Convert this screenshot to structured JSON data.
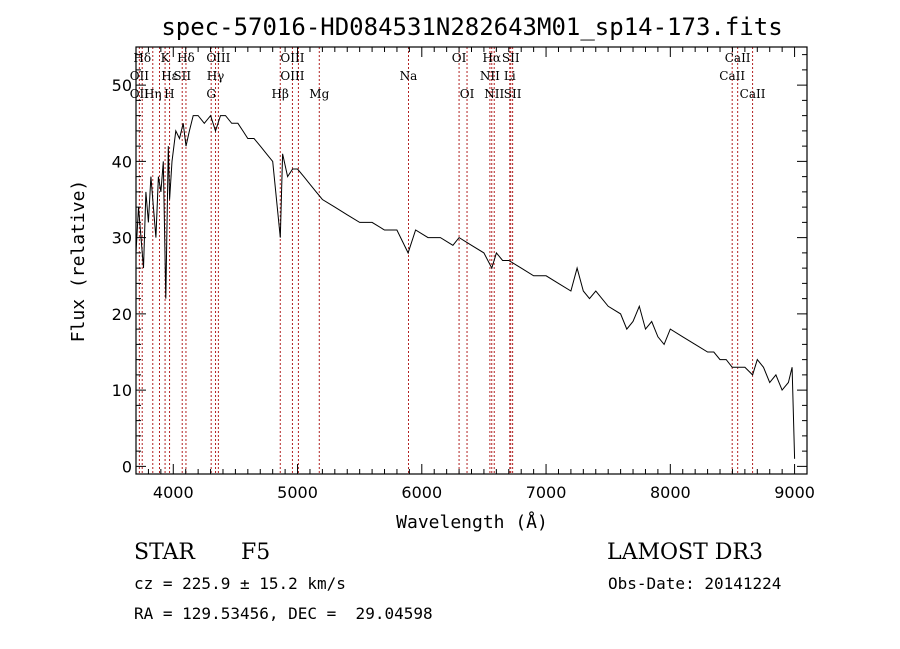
{
  "chart_data": {
    "type": "line",
    "title": "spec-57016-HD084531N282643M01_sp14-173.fits",
    "xlabel": "Wavelength (Å)",
    "ylabel": "Flux (relative)",
    "xlim": [
      3700,
      9100
    ],
    "ylim": [
      -1,
      55
    ],
    "xticks": [
      4000,
      5000,
      6000,
      7000,
      8000,
      9000
    ],
    "yticks": [
      0,
      10,
      20,
      30,
      40,
      50
    ],
    "grid": false,
    "series": [
      {
        "name": "flux",
        "x": [
          3700,
          3720,
          3740,
          3760,
          3780,
          3800,
          3820,
          3840,
          3860,
          3880,
          3900,
          3920,
          3940,
          3960,
          3970,
          3990,
          4020,
          4050,
          4080,
          4102,
          4130,
          4160,
          4200,
          4250,
          4300,
          4340,
          4380,
          4420,
          4470,
          4520,
          4560,
          4600,
          4650,
          4700,
          4750,
          4800,
          4861,
          4880,
          4920,
          4960,
          5000,
          5050,
          5100,
          5150,
          5200,
          5300,
          5400,
          5500,
          5600,
          5700,
          5800,
          5890,
          5950,
          6050,
          6150,
          6250,
          6300,
          6400,
          6500,
          6563,
          6600,
          6650,
          6700,
          6800,
          6900,
          7000,
          7100,
          7200,
          7250,
          7300,
          7350,
          7400,
          7500,
          7600,
          7650,
          7700,
          7750,
          7800,
          7850,
          7900,
          7950,
          8000,
          8100,
          8200,
          8300,
          8350,
          8400,
          8450,
          8498,
          8542,
          8600,
          8662,
          8700,
          8750,
          8800,
          8850,
          8900,
          8950,
          8980,
          9000
        ],
        "y": [
          28,
          34,
          30,
          26,
          36,
          32,
          38,
          34,
          30,
          38,
          36,
          40,
          22,
          42,
          35,
          40,
          44,
          43,
          45,
          42,
          44,
          46,
          46,
          45,
          46,
          44,
          46,
          46,
          45,
          45,
          44,
          43,
          43,
          42,
          41,
          40,
          30,
          41,
          38,
          39,
          39,
          38,
          37,
          36,
          35,
          34,
          33,
          32,
          32,
          31,
          31,
          28,
          31,
          30,
          30,
          29,
          30,
          29,
          28,
          26,
          28,
          27,
          27,
          26,
          25,
          25,
          24,
          23,
          26,
          23,
          22,
          23,
          21,
          20,
          18,
          19,
          21,
          18,
          19,
          17,
          16,
          18,
          17,
          16,
          15,
          15,
          14,
          14,
          13,
          13,
          13,
          12,
          14,
          13,
          11,
          12,
          10,
          11,
          13,
          1
        ]
      }
    ],
    "lines": [
      {
        "label": "Hδ",
        "wave": 3750,
        "row": 1
      },
      {
        "label": "OII",
        "wave": 3727,
        "row": 2
      },
      {
        "label": "OII",
        "wave": 3727,
        "row": 3
      },
      {
        "label": "K",
        "wave": 3934,
        "row": 1
      },
      {
        "label": "Hε",
        "wave": 3970,
        "row": 2
      },
      {
        "label": "SII",
        "wave": 4072,
        "row": 2
      },
      {
        "label": "Hη",
        "wave": 3835,
        "row": 3
      },
      {
        "label": "H",
        "wave": 3968,
        "row": 3
      },
      {
        "label": "Hδ",
        "wave": 4102,
        "row": 1
      },
      {
        "label": "OIII",
        "wave": 4363,
        "row": 1
      },
      {
        "label": "Hγ",
        "wave": 4340,
        "row": 2
      },
      {
        "label": "G",
        "wave": 4305,
        "row": 3
      },
      {
        "label": "OIII",
        "wave": 4959,
        "row": 1
      },
      {
        "label": "OIII",
        "wave": 4959,
        "row": 2
      },
      {
        "label": "Hβ",
        "wave": 4861,
        "row": 3
      },
      {
        "label": "Mg",
        "wave": 5175,
        "row": 3
      },
      {
        "label": "Na",
        "wave": 5893,
        "row": 2
      },
      {
        "label": "OI",
        "wave": 6300,
        "row": 1
      },
      {
        "label": "OI",
        "wave": 6364,
        "row": 3
      },
      {
        "label": "Hα",
        "wave": 6563,
        "row": 1
      },
      {
        "label": "SII",
        "wave": 6716,
        "row": 1
      },
      {
        "label": "NII",
        "wave": 6548,
        "row": 2
      },
      {
        "label": "Li",
        "wave": 6708,
        "row": 2
      },
      {
        "label": "NII",
        "wave": 6583,
        "row": 3
      },
      {
        "label": "SII",
        "wave": 6731,
        "row": 3
      },
      {
        "label": "CaII",
        "wave": 8542,
        "row": 1
      },
      {
        "label": "CaII",
        "wave": 8498,
        "row": 2
      },
      {
        "label": "CaII",
        "wave": 8662,
        "row": 3
      }
    ],
    "line_wavelengths": [
      3727,
      3750,
      3835,
      3889,
      3934,
      3970,
      4072,
      4102,
      4305,
      4340,
      4363,
      4861,
      4959,
      5007,
      5175,
      5893,
      6300,
      6364,
      6548,
      6563,
      6583,
      6708,
      6716,
      6731,
      8498,
      8542,
      8662
    ]
  },
  "info": {
    "class_label": "STAR",
    "subclass": "F5",
    "survey": "LAMOST DR3",
    "cz": "cz = 225.9 ± 15.2 km/s",
    "obs_date": "Obs-Date: 20141224",
    "radec": "RA = 129.53456, DEC =  29.04598"
  },
  "colors": {
    "spectrum": "#000000",
    "line_markers": "#b22222",
    "axes": "#000000"
  }
}
